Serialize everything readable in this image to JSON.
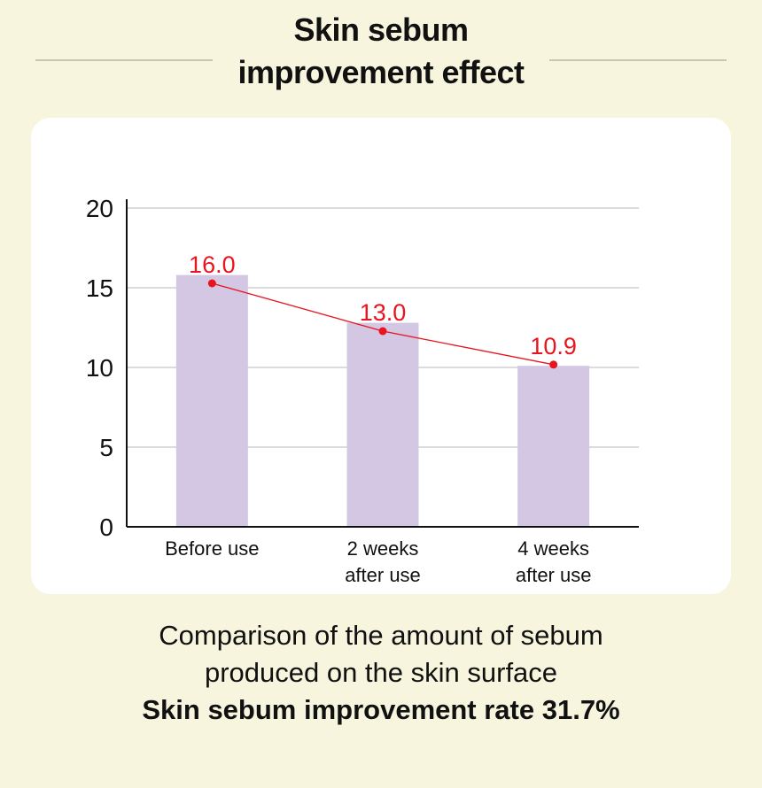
{
  "title": {
    "line1": "Skin sebum",
    "line2": "improvement effect"
  },
  "chart_data": {
    "type": "bar",
    "categories": [
      [
        "Before use"
      ],
      [
        "2 weeks",
        "after use"
      ],
      [
        "4 weeks",
        "after use"
      ]
    ],
    "values": [
      16.0,
      13.0,
      10.9
    ],
    "value_labels": [
      "16.0",
      "13.0",
      "10.9"
    ],
    "bar_values": [
      15.8,
      12.8,
      10.1
    ],
    "ylim": [
      0,
      20
    ],
    "yticks": [
      0,
      5,
      10,
      15,
      20
    ],
    "grid": true,
    "line_overlay": true,
    "xlabel": "",
    "ylabel": ""
  },
  "caption": {
    "line1": "Comparison of the amount of sebum",
    "line2": "produced on the skin surface",
    "line3": "Skin sebum improvement rate 31.7%"
  },
  "colors": {
    "background": "#f7f5dd",
    "bar": "#d3c7e4",
    "line": "#e8141e",
    "grid": "#cfcfcf"
  }
}
